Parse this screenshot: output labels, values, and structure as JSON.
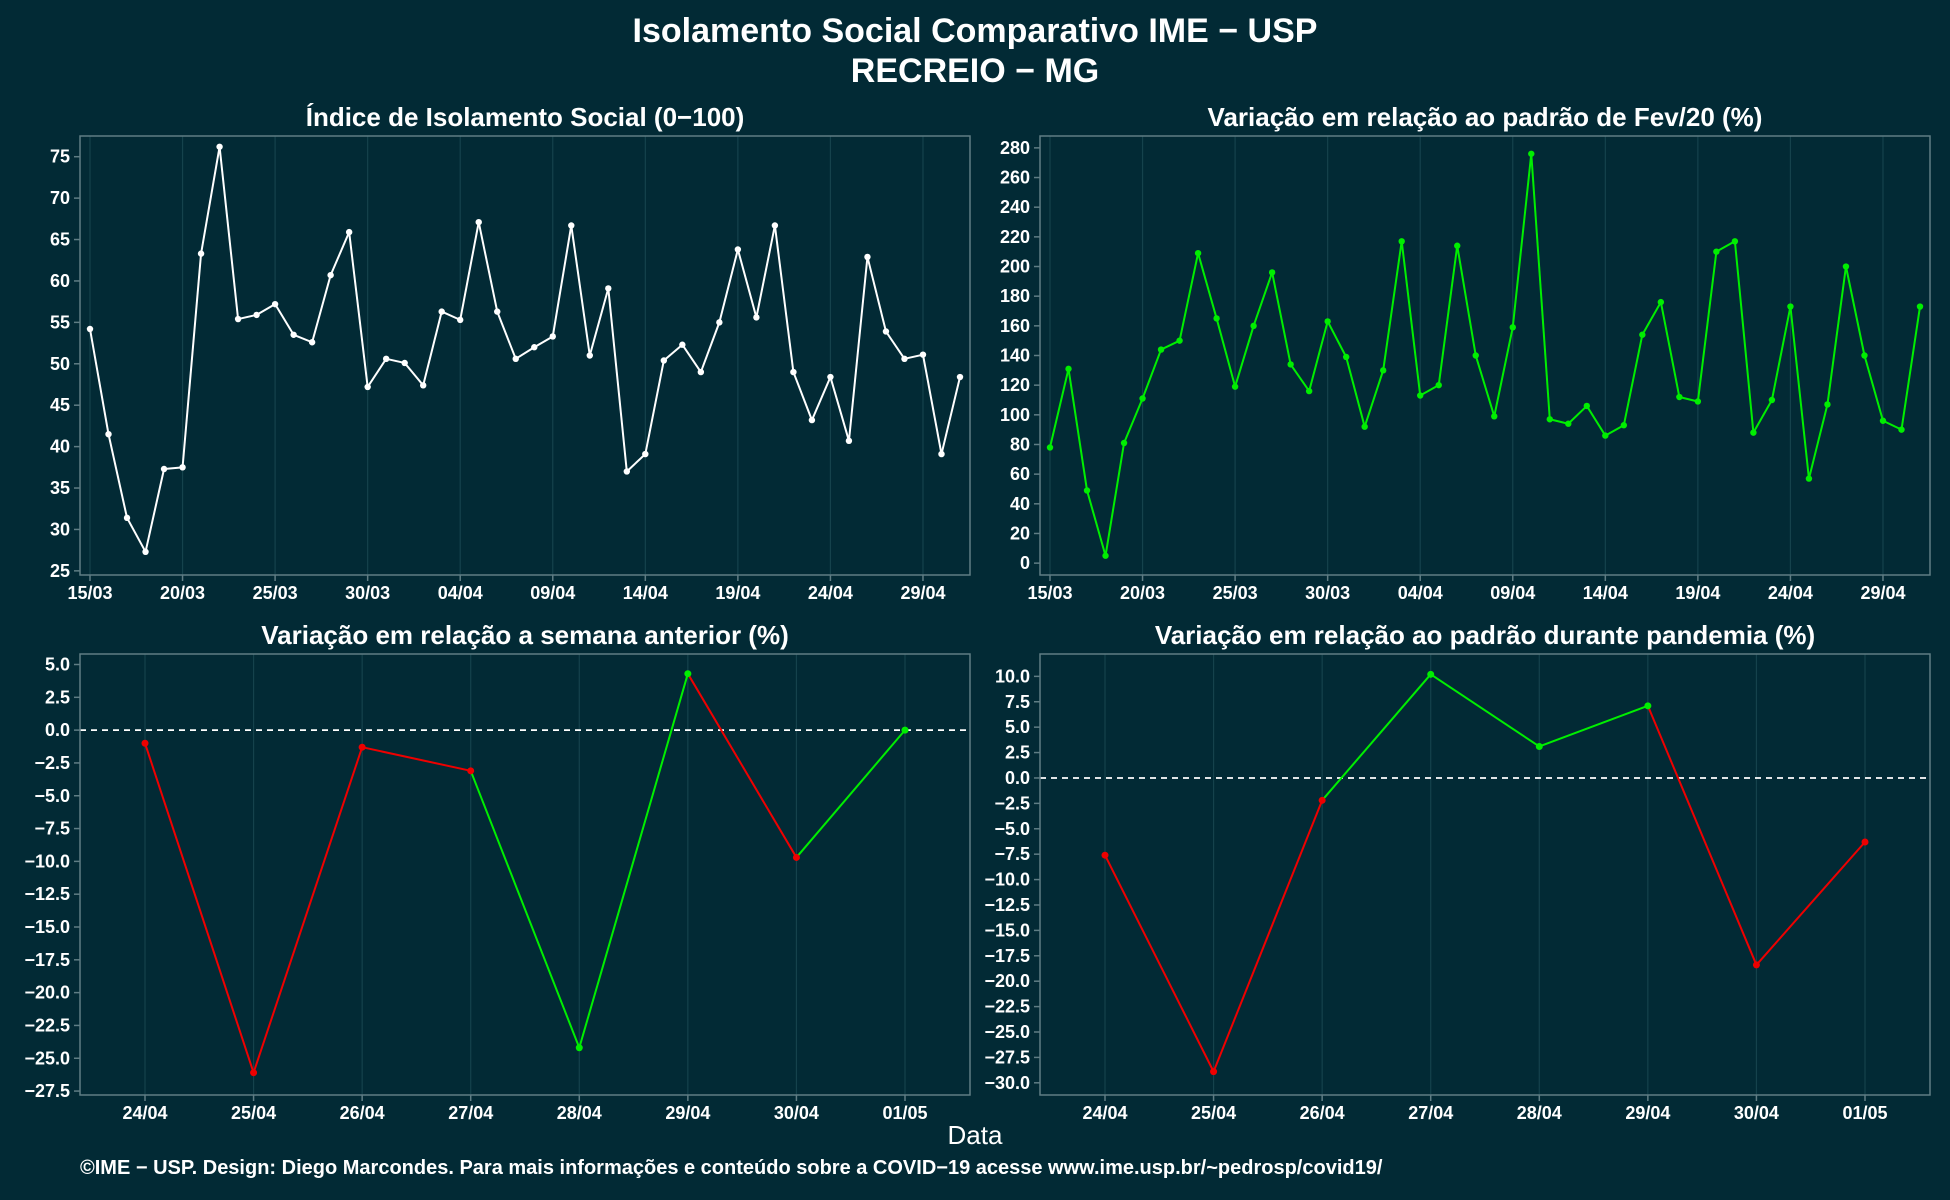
{
  "figure": {
    "title": "Isolamento Social Comparativo IME − USP",
    "subtitle": "RECREIO − MG",
    "xlabel": "Data",
    "footer": "©IME − USP. Design: Diego Marcondes. Para mais informações e conteúdo sobre a COVID−19 acesse www.ime.usp.br/~pedrosp/covid19/"
  },
  "colors": {
    "background": "#022a35",
    "axes_border": "#5f7d84",
    "grid": "#15424c",
    "white": "#ffffff",
    "green": "#00ee00",
    "red": "#ee0000"
  },
  "chart_data": [
    {
      "type": "line",
      "title": "Índice de Isolamento Social (0−100)",
      "color": "white",
      "x": [
        "15/03",
        "16/03",
        "17/03",
        "18/03",
        "19/03",
        "20/03",
        "21/03",
        "22/03",
        "23/03",
        "24/03",
        "25/03",
        "26/03",
        "27/03",
        "28/03",
        "29/03",
        "30/03",
        "31/03",
        "01/04",
        "02/04",
        "03/04",
        "04/04",
        "05/04",
        "06/04",
        "07/04",
        "08/04",
        "09/04",
        "10/04",
        "11/04",
        "12/04",
        "13/04",
        "14/04",
        "15/04",
        "16/04",
        "17/04",
        "18/04",
        "19/04",
        "20/04",
        "21/04",
        "22/04",
        "23/04",
        "24/04",
        "25/04",
        "26/04",
        "27/04",
        "28/04",
        "29/04",
        "30/04",
        "01/05"
      ],
      "values": [
        54.2,
        41.5,
        31.4,
        27.3,
        37.3,
        37.5,
        63.3,
        76.2,
        55.4,
        55.9,
        57.2,
        53.5,
        52.6,
        60.7,
        65.9,
        47.2,
        50.6,
        50.1,
        47.4,
        56.3,
        55.3,
        67.1,
        56.3,
        50.6,
        52.0,
        53.3,
        66.7,
        51.0,
        59.1,
        37.0,
        39.1,
        50.4,
        52.3,
        49.0,
        55.0,
        63.8,
        55.6,
        66.7,
        49.0,
        43.2,
        48.4,
        40.7,
        62.9,
        53.9,
        50.6,
        51.1,
        39.1,
        48.4
      ],
      "xticks": [
        "15/03",
        "20/03",
        "25/03",
        "30/03",
        "04/04",
        "09/04",
        "14/04",
        "19/04",
        "24/04",
        "29/04"
      ],
      "yticks": [
        25,
        30,
        35,
        40,
        45,
        50,
        55,
        60,
        65,
        70,
        75
      ],
      "ylim": [
        24.5,
        77.5
      ]
    },
    {
      "type": "line",
      "title": "Variação em relação ao padrão de Fev/20 (%)",
      "color": "green",
      "x": [
        "15/03",
        "16/03",
        "17/03",
        "18/03",
        "19/03",
        "20/03",
        "21/03",
        "22/03",
        "23/03",
        "24/03",
        "25/03",
        "26/03",
        "27/03",
        "28/03",
        "29/03",
        "30/03",
        "31/03",
        "01/04",
        "02/04",
        "03/04",
        "04/04",
        "05/04",
        "06/04",
        "07/04",
        "08/04",
        "09/04",
        "10/04",
        "11/04",
        "12/04",
        "13/04",
        "14/04",
        "15/04",
        "16/04",
        "17/04",
        "18/04",
        "19/04",
        "20/04",
        "21/04",
        "22/04",
        "23/04",
        "24/04",
        "25/04",
        "26/04",
        "27/04",
        "28/04",
        "29/04",
        "30/04",
        "01/05"
      ],
      "values": [
        78,
        131,
        49,
        5,
        81,
        111,
        144,
        150,
        209,
        165,
        119,
        160,
        196,
        134,
        116,
        163,
        139,
        92,
        130,
        217,
        113,
        120,
        214,
        140,
        99,
        159,
        276,
        97,
        94,
        106,
        86,
        93,
        154,
        176,
        112,
        109,
        210,
        217,
        88,
        110,
        173,
        57,
        107,
        200,
        140,
        96,
        90,
        173
      ],
      "xticks": [
        "15/03",
        "20/03",
        "25/03",
        "30/03",
        "04/04",
        "09/04",
        "14/04",
        "19/04",
        "24/04",
        "29/04"
      ],
      "yticks": [
        0,
        20,
        40,
        60,
        80,
        100,
        120,
        140,
        160,
        180,
        200,
        220,
        240,
        260,
        280
      ],
      "ylim": [
        -8,
        288
      ]
    },
    {
      "type": "line",
      "title": "Variação em relação a semana anterior (%)",
      "x": [
        "24/04",
        "25/04",
        "26/04",
        "27/04",
        "28/04",
        "29/04",
        "30/04",
        "01/05"
      ],
      "values": [
        -1.0,
        -26.1,
        -1.3,
        -3.1,
        -24.2,
        4.3,
        -9.7,
        0.0
      ],
      "point_colors": [
        "red",
        "red",
        "red",
        "red",
        "green",
        "green",
        "red",
        "green"
      ],
      "xticks": [
        "24/04",
        "25/04",
        "26/04",
        "27/04",
        "28/04",
        "29/04",
        "30/04",
        "01/05"
      ],
      "yticks": [
        5.0,
        2.5,
        0.0,
        -2.5,
        -5.0,
        -7.5,
        -10.0,
        -12.5,
        -15.0,
        -17.5,
        -20.0,
        -22.5,
        -25.0,
        -27.5
      ],
      "ytick_labels": [
        "5.0",
        "2.5",
        "0.0",
        "−2.5",
        "−5.0",
        "−7.5",
        "−10.0",
        "−12.5",
        "−15.0",
        "−17.5",
        "−20.0",
        "−22.5",
        "−25.0",
        "−27.5"
      ],
      "ylim": [
        -27.8,
        5.8
      ],
      "reference_line": 0
    },
    {
      "type": "line",
      "title": "Variação em relação ao padrão durante pandemia (%)",
      "x": [
        "24/04",
        "25/04",
        "26/04",
        "27/04",
        "28/04",
        "29/04",
        "30/04",
        "01/05"
      ],
      "values": [
        -7.6,
        -28.9,
        -2.2,
        10.2,
        3.1,
        7.1,
        -18.4,
        -6.3
      ],
      "point_colors": [
        "red",
        "red",
        "red",
        "green",
        "green",
        "green",
        "red",
        "red"
      ],
      "xticks": [
        "24/04",
        "25/04",
        "26/04",
        "27/04",
        "28/04",
        "29/04",
        "30/04",
        "01/05"
      ],
      "yticks": [
        10.0,
        7.5,
        5.0,
        2.5,
        0.0,
        -2.5,
        -5.0,
        -7.5,
        -10.0,
        -12.5,
        -15.0,
        -17.5,
        -20.0,
        -22.5,
        -25.0,
        -27.5,
        -30.0
      ],
      "ytick_labels": [
        "10.0",
        "7.5",
        "5.0",
        "2.5",
        "0.0",
        "−2.5",
        "−5.0",
        "−7.5",
        "−10.0",
        "−12.5",
        "−15.0",
        "−17.5",
        "−20.0",
        "−22.5",
        "−25.0",
        "−27.5",
        "−30.0"
      ],
      "ylim": [
        -31.2,
        12.2
      ],
      "reference_line": 0
    }
  ]
}
